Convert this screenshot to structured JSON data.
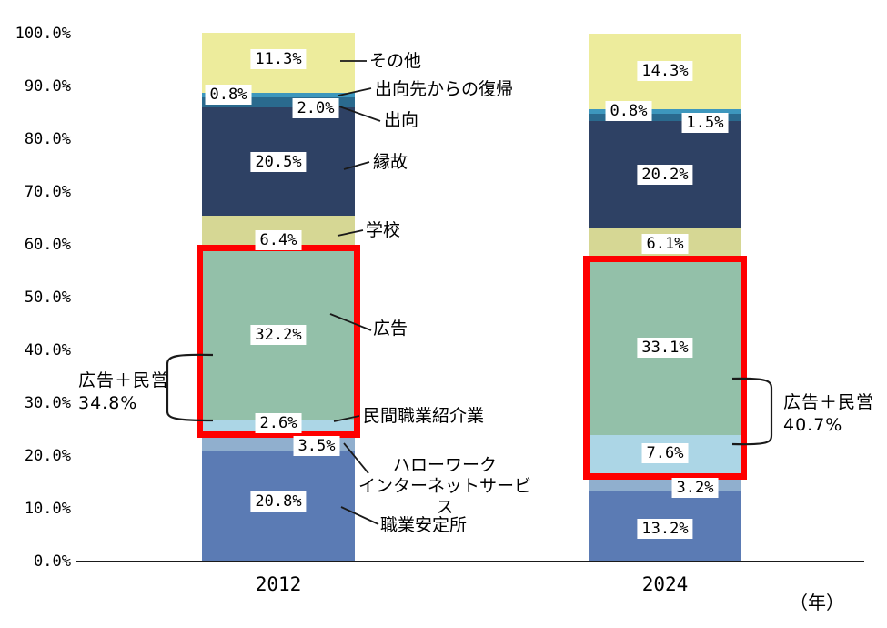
{
  "chart_data": {
    "type": "bar",
    "subtype": "stacked-percent-column",
    "x_categories": [
      "2012",
      "2024"
    ],
    "x_axis_unit_label": "（年）",
    "y_ticks": [
      "100.0%",
      "90.0%",
      "80.0%",
      "70.0%",
      "60.0%",
      "50.0%",
      "40.0%",
      "30.0%",
      "20.0%",
      "10.0%",
      "0.0%"
    ],
    "ylim": [
      0,
      100
    ],
    "grid": "off",
    "legend_position": "right-callouts",
    "series": [
      {
        "name": "職業安定所",
        "display": "職業安定所",
        "color": "#5b7bb4",
        "values": [
          20.8,
          13.2
        ]
      },
      {
        "name": "ハローワークインターネットサービス",
        "display": "ハローワーク\nインターネットサービス",
        "color": "#90afce",
        "values": [
          3.5,
          3.2
        ]
      },
      {
        "name": "民間職業紹介業",
        "display": "民間職業紹介業",
        "color": "#acd6e6",
        "values": [
          2.6,
          7.6
        ]
      },
      {
        "name": "広告",
        "display": "広告",
        "color": "#93c0a9",
        "values": [
          32.2,
          33.1
        ]
      },
      {
        "name": "学校",
        "display": "学校",
        "color": "#d6d794",
        "values": [
          6.4,
          6.1
        ]
      },
      {
        "name": "縁故",
        "display": "縁故",
        "color": "#2e4164",
        "values": [
          20.5,
          20.2
        ]
      },
      {
        "name": "出向",
        "display": "出向",
        "color": "#2a6a8e",
        "values": [
          2.0,
          1.5
        ]
      },
      {
        "name": "出向先からの復帰",
        "display": "出向先からの復帰",
        "color": "#3d97bd",
        "values": [
          0.8,
          0.8
        ]
      },
      {
        "name": "その他",
        "display": "その他",
        "color": "#edec9c",
        "values": [
          11.3,
          14.3
        ]
      }
    ],
    "highlights": [
      {
        "year": "2012",
        "label": "広告＋民営",
        "value_label": "34.8%",
        "covers": [
          "民間職業紹介業",
          "広告"
        ],
        "box_color": "#fe0000"
      },
      {
        "year": "2024",
        "label": "広告＋民営",
        "value_label": "40.7%",
        "covers": [
          "民間職業紹介業",
          "広告"
        ],
        "box_color": "#fe0000"
      }
    ],
    "line_color": "#1a1a1a"
  }
}
